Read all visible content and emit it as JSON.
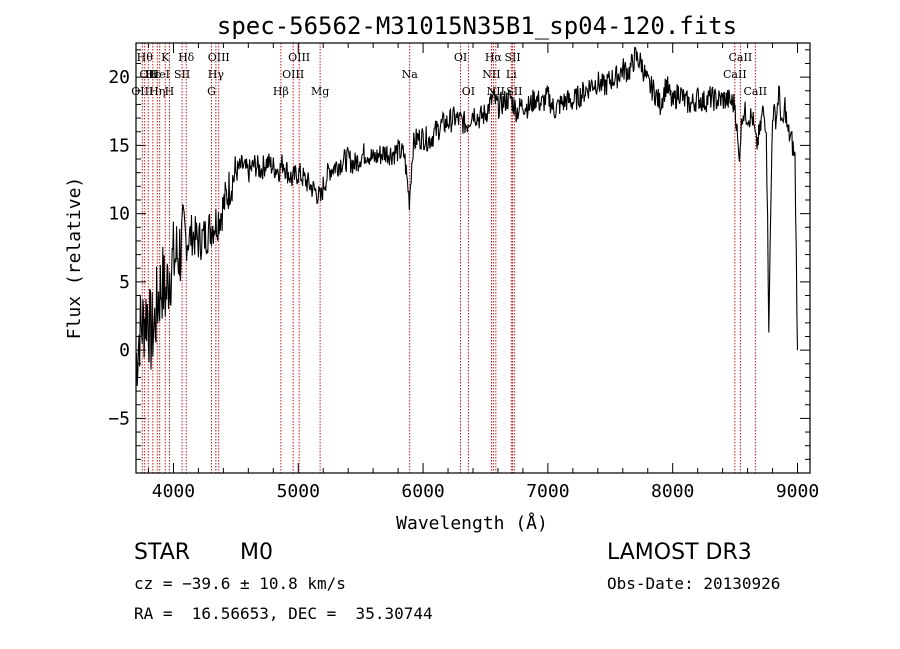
{
  "chart_data": {
    "type": "line",
    "title": "spec-56562-M31015N35B1_sp04-120.fits",
    "xlabel": "Wavelength (Å)",
    "ylabel": "Flux (relative)",
    "xlim": [
      3700,
      9100
    ],
    "ylim": [
      -9,
      22.5
    ],
    "x_ticks": [
      4000,
      5000,
      6000,
      7000,
      8000,
      9000
    ],
    "y_ticks": [
      -5,
      0,
      5,
      10,
      15,
      20
    ],
    "grid": false,
    "series": [
      {
        "name": "flux",
        "x": [
          3700,
          3730,
          3760,
          3790,
          3820,
          3850,
          3880,
          3910,
          3940,
          3970,
          4000,
          4030,
          4060,
          4100,
          4150,
          4200,
          4250,
          4300,
          4350,
          4400,
          4450,
          4500,
          4550,
          4600,
          4650,
          4700,
          4750,
          4800,
          4850,
          4880,
          4900,
          4950,
          5000,
          5050,
          5100,
          5150,
          5180,
          5200,
          5250,
          5300,
          5350,
          5400,
          5450,
          5500,
          5550,
          5600,
          5650,
          5700,
          5750,
          5800,
          5850,
          5890,
          5920,
          5950,
          6000,
          6050,
          6100,
          6150,
          6200,
          6250,
          6300,
          6350,
          6400,
          6450,
          6500,
          6563,
          6600,
          6650,
          6700,
          6750,
          6800,
          6850,
          6900,
          6950,
          7000,
          7050,
          7100,
          7150,
          7200,
          7250,
          7300,
          7350,
          7400,
          7450,
          7500,
          7550,
          7600,
          7650,
          7700,
          7750,
          7800,
          7850,
          7900,
          7950,
          8000,
          8050,
          8100,
          8150,
          8200,
          8250,
          8300,
          8350,
          8400,
          8450,
          8500,
          8530,
          8560,
          8600,
          8640,
          8670,
          8700,
          8720,
          8750,
          8770,
          8800,
          8830,
          8850,
          8880,
          8900,
          8920,
          8950,
          8980,
          9000
        ],
        "y": [
          -1,
          1.5,
          2,
          3,
          1,
          2,
          4,
          5,
          4,
          6,
          6.5,
          7,
          7.5,
          8,
          8.5,
          8,
          8.3,
          9,
          9.5,
          10.5,
          12,
          13,
          13.5,
          13,
          13.6,
          13.2,
          13.8,
          13.4,
          13.2,
          13.8,
          13.3,
          12.5,
          13,
          12.5,
          12,
          11.5,
          11,
          12,
          13.2,
          13.5,
          13.8,
          14,
          13.6,
          14.2,
          14.5,
          14,
          14.3,
          14.5,
          14.4,
          14.6,
          14.3,
          11,
          15,
          15.5,
          15.6,
          15.4,
          16,
          16.5,
          16.7,
          17,
          16.8,
          16.5,
          17.5,
          17,
          17.3,
          18.5,
          17.8,
          18.2,
          18.5,
          17.5,
          18,
          17.8,
          18.5,
          18,
          18.6,
          17.6,
          18,
          18.3,
          18.2,
          18.6,
          19,
          19.5,
          19.6,
          19.3,
          19.8,
          20,
          20.6,
          20.4,
          21.5,
          21,
          19.5,
          19,
          18,
          19.5,
          18,
          19,
          18.2,
          18,
          18.5,
          18.2,
          18.5,
          18.3,
          18.4,
          18.3,
          18,
          14,
          17.5,
          17.2,
          17,
          15,
          16,
          17.5,
          16.5,
          2,
          17.5,
          17,
          19,
          16,
          18,
          16,
          15.5,
          14,
          0
        ]
      }
    ],
    "lines": [
      {
        "x": 3750,
        "row": 2,
        "label": "OIII"
      },
      {
        "x": 3770,
        "row": 0,
        "label": "Hθ"
      },
      {
        "x": 3798,
        "row": 1,
        "label": "OII"
      },
      {
        "x": 3835,
        "row": 1,
        "label": "Hε"
      },
      {
        "x": 3870,
        "row": 2,
        "label": "Hη"
      },
      {
        "x": 3890,
        "row": 1,
        "label": "HeI"
      },
      {
        "x": 3934,
        "row": 0,
        "label": "K"
      },
      {
        "x": 3968,
        "row": 2,
        "label": "H"
      },
      {
        "x": 4069,
        "row": 1,
        "label": "SII"
      },
      {
        "x": 4102,
        "row": 0,
        "label": "Hδ"
      },
      {
        "x": 4305,
        "row": 2,
        "label": "G"
      },
      {
        "x": 4340,
        "row": 1,
        "label": "Hγ"
      },
      {
        "x": 4363,
        "row": 0,
        "label": "OIII"
      },
      {
        "x": 4861,
        "row": 2,
        "label": "Hβ"
      },
      {
        "x": 4959,
        "row": 1,
        "label": "OIII"
      },
      {
        "x": 5007,
        "row": 0,
        "label": "OIII"
      },
      {
        "x": 5175,
        "row": 2,
        "label": "Mg"
      },
      {
        "x": 5893,
        "row": 1,
        "label": "Na"
      },
      {
        "x": 6300,
        "row": 0,
        "label": "OI"
      },
      {
        "x": 6363,
        "row": 2,
        "label": "OI"
      },
      {
        "x": 6548,
        "row": 1,
        "label": "NII"
      },
      {
        "x": 6563,
        "row": 0,
        "label": "Hα"
      },
      {
        "x": 6583,
        "row": 2,
        "label": "NII"
      },
      {
        "x": 6707,
        "row": 1,
        "label": "Li"
      },
      {
        "x": 6717,
        "row": 0,
        "label": "SII"
      },
      {
        "x": 6731,
        "row": 2,
        "label": "SII"
      },
      {
        "x": 8498,
        "row": 1,
        "label": "CaII"
      },
      {
        "x": 8542,
        "row": 0,
        "label": "CaII"
      },
      {
        "x": 8662,
        "row": 2,
        "label": "CaII"
      }
    ],
    "line_color": "#c00000"
  },
  "info": {
    "class": "STAR",
    "subclass": "M0",
    "survey": "LAMOST DR3",
    "cz": "cz = −39.6 ± 10.8 km/s",
    "obs_date": "Obs-Date: 20130926",
    "coords": "RA =  16.56653, DEC =  35.30744"
  }
}
